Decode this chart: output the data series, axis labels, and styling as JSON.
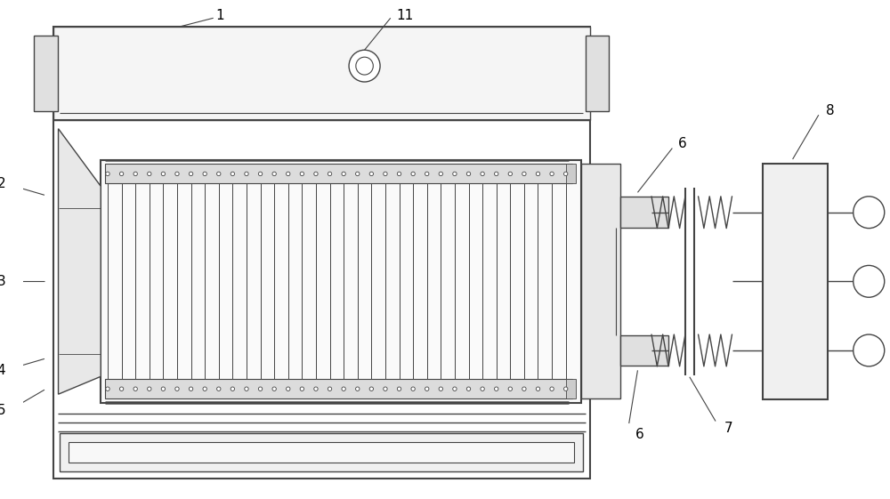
{
  "bg_color": "#ffffff",
  "lc": "#444444",
  "fig_width": 10.0,
  "fig_height": 5.61,
  "dpi": 100,
  "n_fins": 34,
  "dot_r": 0.004
}
